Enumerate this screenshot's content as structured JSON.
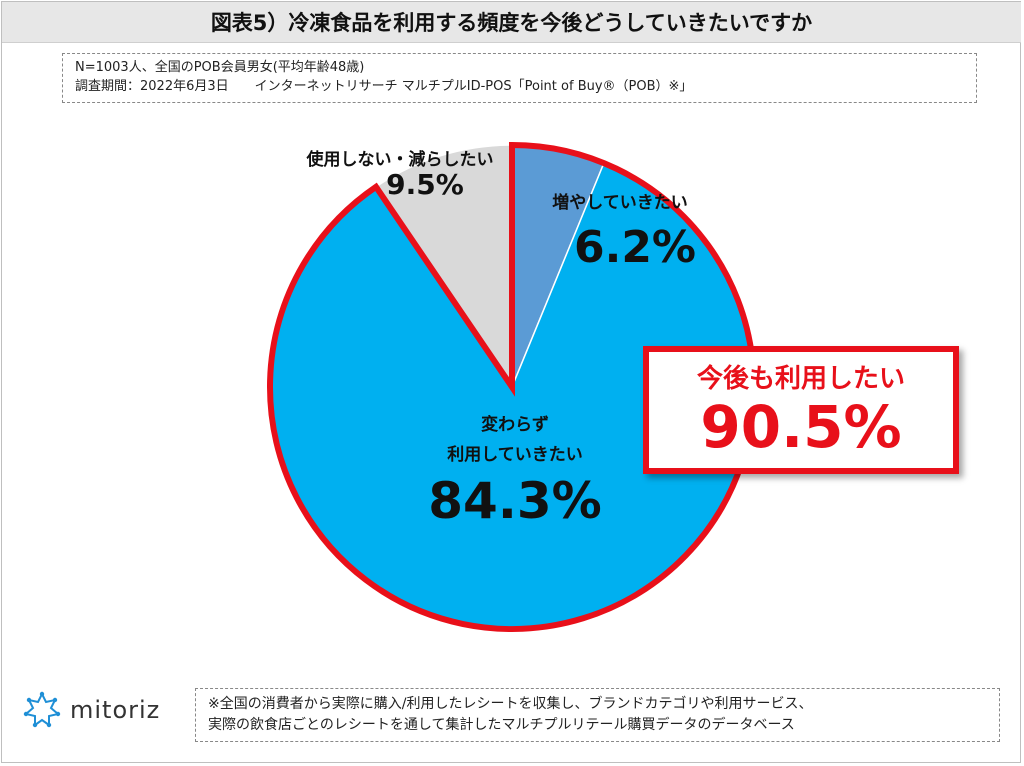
{
  "header": {
    "title": "図表5）冷凍食品を利用する頻度を今後どうしていきたいですか"
  },
  "info": {
    "line1": "N=1003人、全国のPOB会員男女(平均年齢48歳)",
    "line2": "調査期間：2022年6月3日　　インターネットリサーチ マルチプルID-POS「Point of Buy®（POB）※」"
  },
  "chart_data": {
    "type": "pie",
    "unit": "%",
    "slices": [
      {
        "label": "増やしていきたい",
        "value": 6.2,
        "display": "6.2%",
        "color": "#5b9bd5"
      },
      {
        "label": "変わらず 利用していきたい",
        "value": 84.3,
        "display": "84.3%",
        "color": "#00b0f0"
      },
      {
        "label": "使用しない・減らしたい",
        "value": 9.5,
        "display": "9.5%",
        "color": "#d9d9d9"
      }
    ],
    "highlight": {
      "label": "今後も利用したい",
      "display": "90.5%",
      "color": "#e8101a"
    }
  },
  "labels": {
    "increase_cat": "増やしていきたい",
    "same_cat_line1": "変わらず",
    "same_cat_line2": "利用していきたい",
    "decrease_cat": "使用しない・減らしたい"
  },
  "brand": {
    "name": "mitoriz",
    "logo_color": "#1f8fd6"
  },
  "footnote": {
    "line1": "※全国の消費者から実際に購入/利用したレシートを収集し、ブランドカテゴリや利用サービス、",
    "line2": "実際の飲食店ごとのレシートを通して集計したマルチプルリテール購買データのデータベース"
  }
}
